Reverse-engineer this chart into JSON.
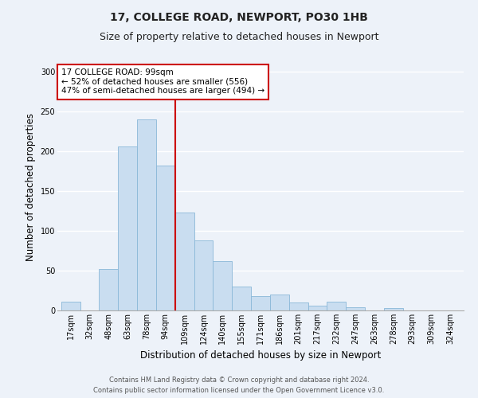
{
  "title": "17, COLLEGE ROAD, NEWPORT, PO30 1HB",
  "subtitle": "Size of property relative to detached houses in Newport",
  "xlabel": "Distribution of detached houses by size in Newport",
  "ylabel": "Number of detached properties",
  "categories": [
    "17sqm",
    "32sqm",
    "48sqm",
    "63sqm",
    "78sqm",
    "94sqm",
    "109sqm",
    "124sqm",
    "140sqm",
    "155sqm",
    "171sqm",
    "186sqm",
    "201sqm",
    "217sqm",
    "232sqm",
    "247sqm",
    "263sqm",
    "278sqm",
    "293sqm",
    "309sqm",
    "324sqm"
  ],
  "values": [
    11,
    0,
    52,
    206,
    240,
    182,
    123,
    88,
    62,
    30,
    18,
    20,
    10,
    6,
    11,
    4,
    0,
    3,
    0,
    0,
    0
  ],
  "bar_color": "#c9ddf0",
  "bar_edge_color": "#8ab8d8",
  "bar_width": 1.0,
  "vline_x": 5.5,
  "vline_color": "#cc0000",
  "ylim": [
    0,
    310
  ],
  "yticks": [
    0,
    50,
    100,
    150,
    200,
    250,
    300
  ],
  "annotation_title": "17 COLLEGE ROAD: 99sqm",
  "annotation_line1": "← 52% of detached houses are smaller (556)",
  "annotation_line2": "47% of semi-detached houses are larger (494) →",
  "annotation_box_color": "#ffffff",
  "annotation_box_edge_color": "#cc0000",
  "footer1": "Contains HM Land Registry data © Crown copyright and database right 2024.",
  "footer2": "Contains public sector information licensed under the Open Government Licence v3.0.",
  "background_color": "#edf2f9",
  "plot_bg_color": "#edf2f9",
  "grid_color": "#ffffff",
  "title_fontsize": 10,
  "subtitle_fontsize": 9,
  "axis_label_fontsize": 8.5,
  "tick_fontsize": 7,
  "annotation_fontsize": 7.5,
  "footer_fontsize": 6
}
